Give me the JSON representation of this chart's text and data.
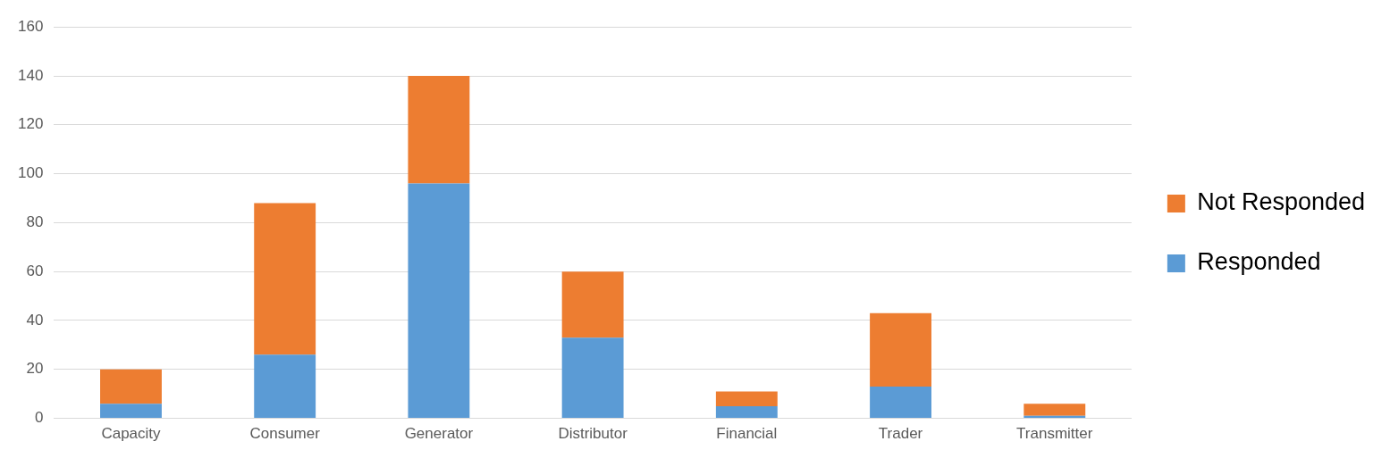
{
  "chart_data": {
    "type": "bar",
    "stacked": true,
    "categories": [
      "Capacity",
      "Consumer",
      "Generator",
      "Distributor",
      "Financial",
      "Trader",
      "Transmitter"
    ],
    "series": [
      {
        "name": "Responded",
        "color": "#5b9bd5",
        "values": [
          6,
          26,
          96,
          33,
          5,
          13,
          1
        ]
      },
      {
        "name": "Not Responded",
        "color": "#ed7d31",
        "values": [
          14,
          62,
          44,
          27,
          6,
          30,
          5
        ]
      }
    ],
    "ylim": [
      0,
      160
    ],
    "yticks": [
      0,
      20,
      40,
      60,
      80,
      100,
      120,
      140,
      160
    ],
    "grid": "y",
    "legend": "right"
  }
}
